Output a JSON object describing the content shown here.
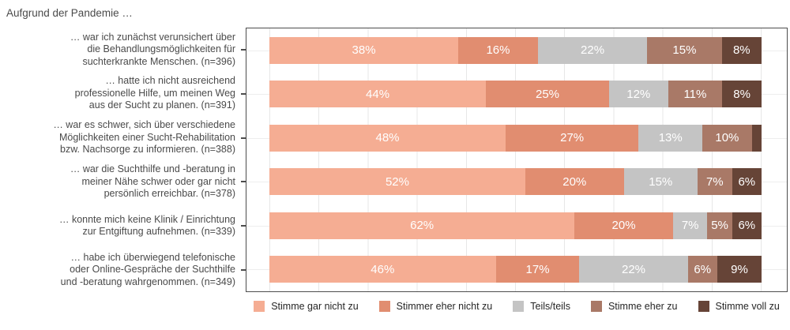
{
  "chart_data": {
    "type": "bar",
    "subtype": "horizontal-stacked-100pct-likert",
    "title": "Aufgrund der Pandemie …",
    "xlim": [
      0,
      100
    ],
    "grid": true,
    "legend_position": "bottom",
    "legend": [
      "Stimme gar nicht zu",
      "Stimmer eher nicht zu",
      "Teils/teils",
      "Stimme eher zu",
      "Stimme voll zu"
    ],
    "series_colors": [
      "#F5AD93",
      "#E18D70",
      "#C4C4C4",
      "#A97967",
      "#664437"
    ],
    "panel_border_color": "#4d4d4d",
    "gridline_color": "#e7e7e7",
    "rows": [
      {
        "category": "… war ich zunächst verunsichert über die Behandlungsmöglichkeiten für suchterkrankte Menschen. (n=396)",
        "category_lines": [
          "… war ich zunächst verunsichert über",
          "die Behandlungsmöglichkeiten für",
          "suchterkrankte Menschen. (n=396)"
        ],
        "values": [
          38,
          16,
          22,
          15,
          8
        ],
        "labels": [
          "38%",
          "16%",
          "22%",
          "15%",
          "8%"
        ]
      },
      {
        "category": "… hatte ich nicht ausreichend professionelle Hilfe, um meinen Weg aus der Sucht zu planen. (n=391)",
        "category_lines": [
          "… hatte ich nicht ausreichend",
          "professionelle Hilfe, um meinen Weg",
          "aus der Sucht zu planen. (n=391)"
        ],
        "values": [
          44,
          25,
          12,
          11,
          8
        ],
        "labels": [
          "44%",
          "25%",
          "12%",
          "11%",
          "8%"
        ]
      },
      {
        "category": "… war es schwer, sich über verschiedene Möglichkeiten einer Sucht-Rehabilitation bzw. Nachsorge zu informieren. (n=388)",
        "category_lines": [
          "… war es schwer, sich über verschiedene",
          "Möglichkeiten einer Sucht-Rehabilitation",
          "bzw. Nachsorge zu informieren. (n=388)"
        ],
        "values": [
          48,
          27,
          13,
          10,
          2
        ],
        "labels": [
          "48%",
          "27%",
          "13%",
          "10%",
          ""
        ]
      },
      {
        "category": "… war die Suchthilfe und -beratung in meiner Nähe schwer oder gar nicht persönlich erreichbar. (n=378)",
        "category_lines": [
          "… war die Suchthilfe und -beratung in",
          "meiner Nähe schwer oder gar nicht",
          "persönlich erreichbar. (n=378)"
        ],
        "values": [
          52,
          20,
          15,
          7,
          6
        ],
        "labels": [
          "52%",
          "20%",
          "15%",
          "7%",
          "6%"
        ]
      },
      {
        "category": "… konnte mich keine Klinik / Einrichtung zur Entgiftung aufnehmen. (n=339)",
        "category_lines": [
          "… konnte mich keine Klinik / Einrichtung",
          "zur Entgiftung aufnehmen. (n=339)"
        ],
        "values": [
          62,
          20,
          7,
          5,
          6
        ],
        "labels": [
          "62%",
          "20%",
          "7%",
          "5%",
          "6%"
        ]
      },
      {
        "category": "… habe ich überwiegend telefonische oder Online-Gespräche der Suchthilfe und -beratung wahrgenommen. (n=349)",
        "category_lines": [
          "… habe ich überwiegend telefonische",
          "oder Online-Gespräche der Suchthilfe",
          "und -beratung wahrgenommen. (n=349)"
        ],
        "values": [
          46,
          17,
          22,
          6,
          9
        ],
        "labels": [
          "46%",
          "17%",
          "22%",
          "6%",
          "9%"
        ]
      }
    ]
  }
}
